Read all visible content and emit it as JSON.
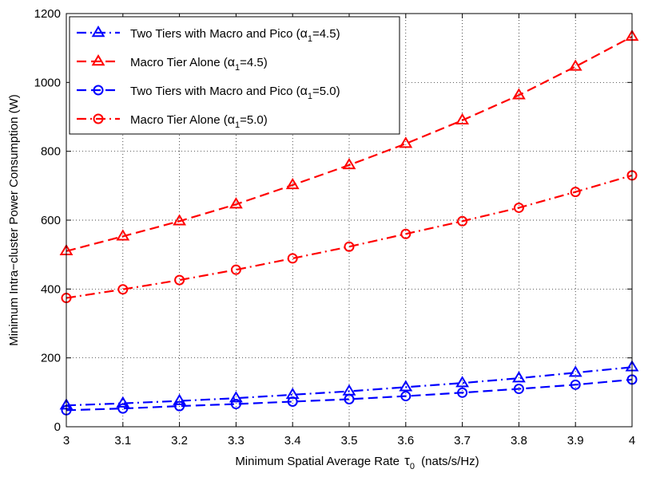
{
  "chart_data": {
    "type": "line",
    "title": "",
    "xlabel": "Minimum Spatial Average Rate",
    "xlabel_symbol": "τ",
    "xlabel_subscript": "0",
    "xlabel_unit": "(nats/s/Hz)",
    "ylabel": "Minimum Intra−cluster Power Consumption (W)",
    "xlim": [
      3,
      4
    ],
    "ylim": [
      0,
      1200
    ],
    "xticks": [
      "3",
      "3.1",
      "3.2",
      "3.3",
      "3.4",
      "3.5",
      "3.6",
      "3.7",
      "3.8",
      "3.9",
      "4"
    ],
    "yticks": [
      "0",
      "200",
      "400",
      "600",
      "800",
      "1000",
      "1200"
    ],
    "grid": true,
    "legend_position": "top-left",
    "x": [
      3.0,
      3.1,
      3.2,
      3.3,
      3.4,
      3.5,
      3.6,
      3.7,
      3.8,
      3.9,
      4.0
    ],
    "series": [
      {
        "name": "Two Tiers with Macro and Pico",
        "alpha_value": "4.5",
        "color": "#0000ff",
        "line_style": "dash-dot",
        "marker": "triangle",
        "values": [
          62,
          68,
          75,
          83,
          93,
          103,
          115,
          127,
          141,
          157,
          173
        ]
      },
      {
        "name": "Macro Tier Alone",
        "alpha_value": "4.5",
        "color": "#ff0000",
        "line_style": "dashed",
        "marker": "triangle",
        "values": [
          510,
          553,
          597,
          646,
          702,
          760,
          822,
          890,
          963,
          1046,
          1133
        ]
      },
      {
        "name": "Two Tiers with Macro and Pico",
        "alpha_value": "5.0",
        "color": "#0000ff",
        "line_style": "dashed",
        "marker": "circle",
        "values": [
          48,
          53,
          60,
          66,
          73,
          80,
          89,
          99,
          110,
          122,
          137
        ]
      },
      {
        "name": "Macro Tier Alone",
        "alpha_value": "5.0",
        "color": "#ff0000",
        "line_style": "dash-dot",
        "marker": "circle",
        "values": [
          374,
          399,
          426,
          456,
          489,
          523,
          560,
          597,
          636,
          682,
          730
        ]
      }
    ]
  }
}
